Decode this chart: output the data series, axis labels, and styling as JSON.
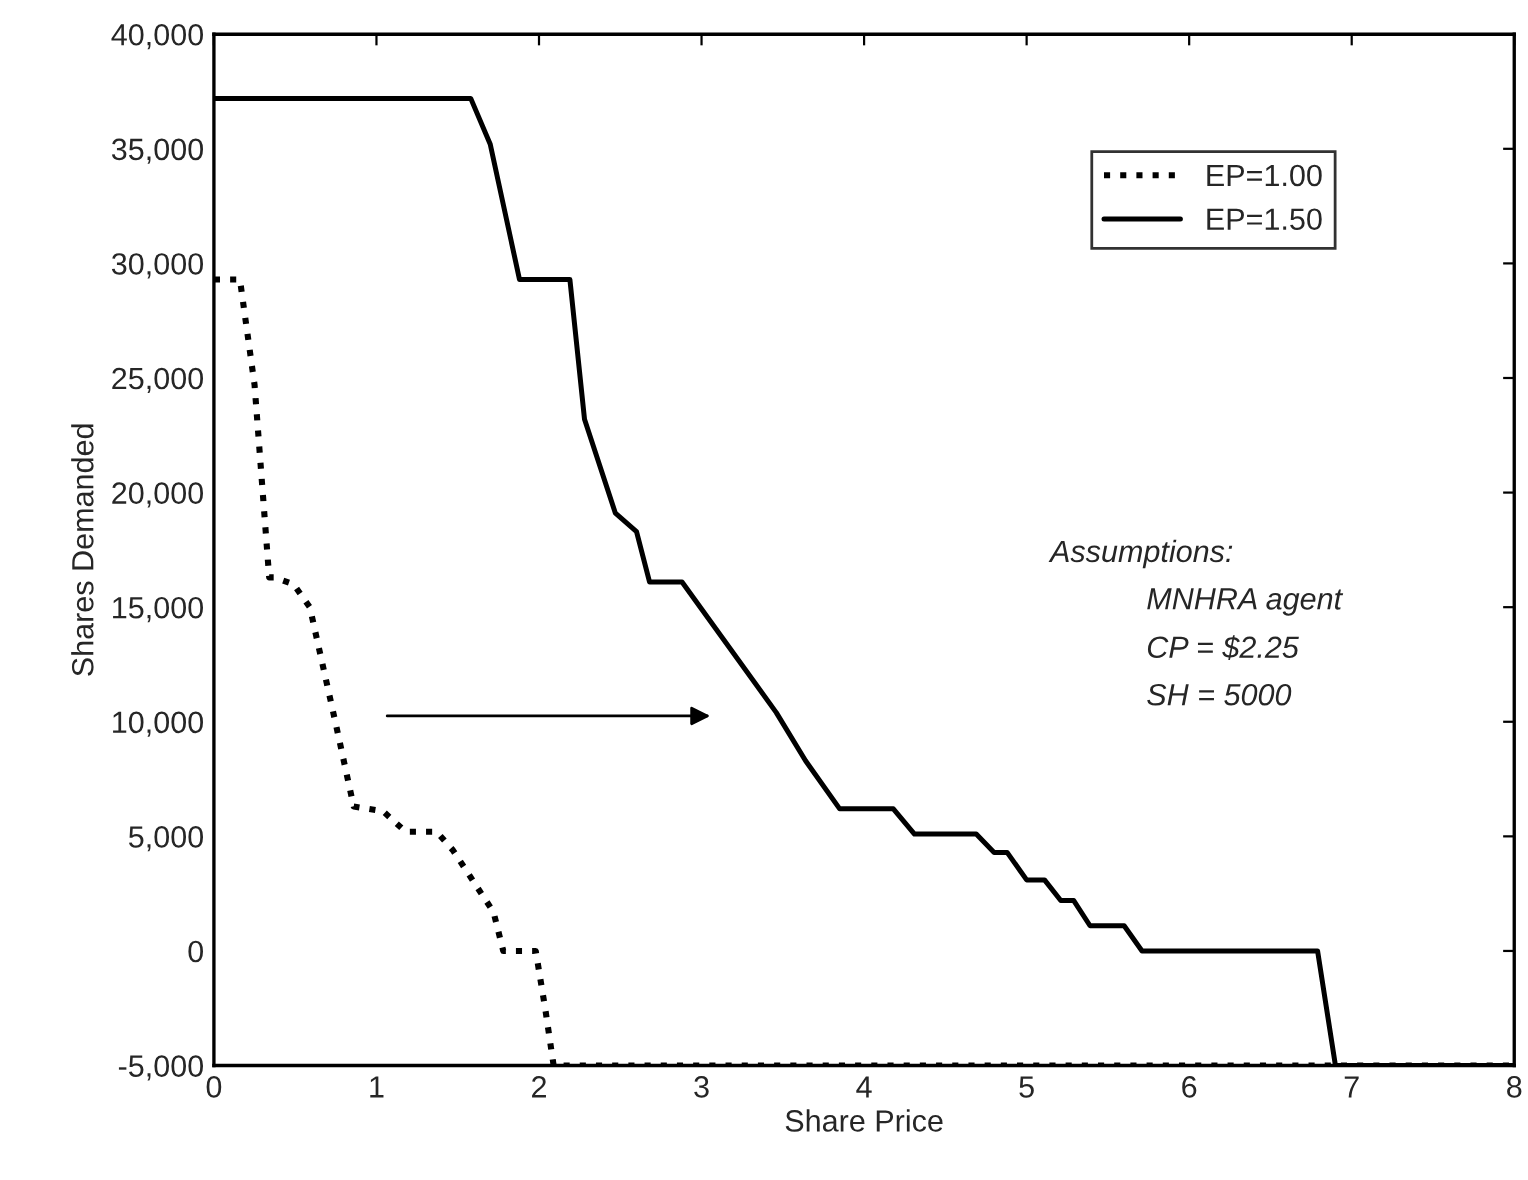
{
  "chart_data": {
    "type": "line",
    "xlabel": "Share Price",
    "ylabel": "Shares Demanded",
    "xlim": [
      0,
      8
    ],
    "ylim": [
      -5000,
      40000
    ],
    "xticks": [
      0,
      1,
      2,
      3,
      4,
      5,
      6,
      7,
      8
    ],
    "yticks": [
      {
        "value": -5000,
        "label": "-5,000"
      },
      0,
      {
        "value": 5000,
        "label": "5,000"
      },
      {
        "value": 10000,
        "label": "10,000"
      },
      {
        "value": 15000,
        "label": "15,000"
      },
      {
        "value": 20000,
        "label": "20,000"
      },
      {
        "value": 25000,
        "label": "25,000"
      },
      {
        "value": 30000,
        "label": "30,000"
      },
      {
        "value": 35000,
        "label": "35,000"
      },
      {
        "value": 40000,
        "label": "40,000"
      }
    ],
    "grid": false,
    "legend": "top right",
    "marker": "none",
    "series": [
      {
        "name": "EP=1.00",
        "color": "#000000",
        "line_style": "dotted",
        "x": [
          0,
          0.16,
          0.25,
          0.34,
          0.37,
          0.49,
          0.59,
          0.75,
          0.86,
          1.04,
          1.18,
          1.37,
          1.47,
          1.72,
          1.78,
          1.98,
          2.04,
          2.09,
          8
        ],
        "values": [
          29300,
          29300,
          24700,
          16300,
          16300,
          16000,
          15000,
          9900,
          6300,
          6100,
          5200,
          5200,
          4400,
          1700,
          0,
          0,
          -2600,
          -5000,
          -5000
        ]
      },
      {
        "name": "EP=1.50",
        "color": "#000000",
        "line_style": "solid",
        "x": [
          0,
          1.58,
          1.7,
          1.88,
          2.19,
          2.28,
          2.47,
          2.6,
          2.68,
          2.88,
          3.46,
          3.64,
          3.85,
          4.18,
          4.31,
          4.69,
          4.8,
          4.88,
          5.0,
          5.11,
          5.21,
          5.29,
          5.39,
          5.6,
          5.71,
          6.79,
          6.9,
          8
        ],
        "values": [
          37200,
          37200,
          35200,
          29300,
          29300,
          23200,
          19100,
          18300,
          16100,
          16100,
          10400,
          8300,
          6200,
          6200,
          5100,
          5100,
          4300,
          4300,
          3100,
          3100,
          2200,
          2200,
          1100,
          1100,
          0,
          0,
          -5000,
          -5000
        ]
      }
    ],
    "annotations": [
      "Assumptions:",
      "MNHRA agent",
      "CP = $2.25",
      "SH = 5000"
    ]
  }
}
